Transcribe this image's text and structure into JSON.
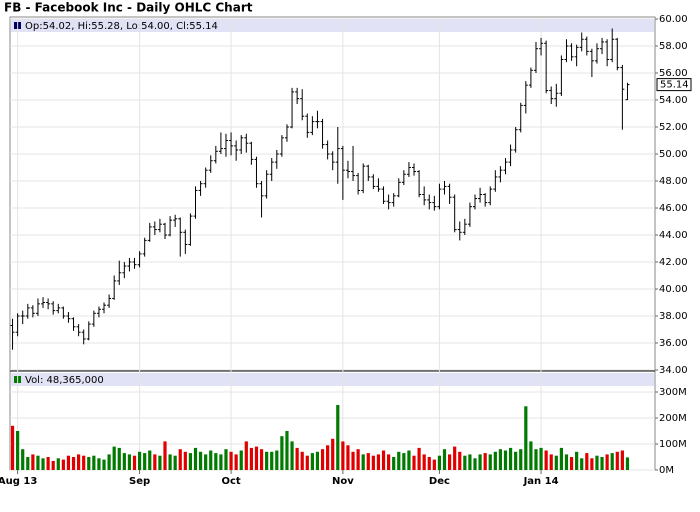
{
  "chart_data": {
    "type": "ohlc",
    "title": "FB - Facebook Inc - Daily OHLC Chart",
    "legend_label": "Op:54.02, Hi:55.28, Lo:54.00, Cl:55.14",
    "volume_label": "Vol: 48,365,000",
    "categories": [
      null,
      "Aug 13",
      null,
      null,
      null,
      null,
      null,
      null,
      null,
      null,
      null,
      null,
      null,
      null,
      null,
      null,
      null,
      null,
      null,
      null,
      null,
      null,
      null,
      null,
      null,
      "Sep",
      null,
      null,
      null,
      null,
      null,
      null,
      null,
      null,
      null,
      null,
      null,
      null,
      null,
      null,
      null,
      null,
      null,
      "Oct",
      null,
      null,
      null,
      null,
      null,
      null,
      null,
      null,
      null,
      null,
      null,
      null,
      null,
      null,
      null,
      null,
      null,
      null,
      null,
      null,
      null,
      "Nov",
      null,
      null,
      null,
      null,
      null,
      null,
      null,
      null,
      null,
      null,
      null,
      null,
      null,
      null,
      null,
      null,
      null,
      null,
      "Dec",
      null,
      null,
      null,
      null,
      null,
      null,
      null,
      null,
      null,
      null,
      null,
      null,
      null,
      null,
      null,
      null,
      null,
      null,
      null,
      "Jan 14",
      null,
      null,
      null,
      null,
      null,
      null,
      null,
      null,
      null,
      null,
      null,
      null,
      null,
      null,
      null,
      null,
      null
    ],
    "open": [
      37.3,
      36.8,
      38.0,
      38.0,
      38.6,
      38.2,
      38.9,
      39.0,
      38.9,
      38.4,
      38.6,
      38.0,
      37.8,
      37.2,
      36.8,
      36.3,
      37.4,
      38.2,
      38.5,
      38.8,
      39.3,
      40.6,
      41.2,
      41.7,
      42.0,
      41.8,
      42.6,
      43.6,
      44.6,
      44.4,
      44.8,
      44.0,
      45.1,
      45.2,
      44.2,
      43.3,
      45.4,
      47.3,
      47.8,
      48.8,
      49.5,
      50.2,
      50.4,
      51.0,
      50.6,
      50.3,
      51.2,
      50.8,
      49.6,
      47.8,
      46.9,
      48.5,
      49.4,
      50.0,
      51.2,
      52.0,
      54.6,
      54.1,
      52.8,
      51.6,
      52.4,
      52.4,
      50.7,
      50.0,
      49.4,
      50.4,
      48.8,
      48.7,
      48.4,
      47.3,
      49.1,
      48.3,
      47.6,
      47.4,
      46.5,
      46.4,
      46.9,
      47.9,
      48.5,
      49.0,
      48.7,
      47.0,
      46.6,
      46.4,
      46.1,
      47.4,
      47.6,
      46.8,
      44.4,
      44.2,
      44.8,
      46.1,
      46.7,
      47.0,
      46.4,
      47.4,
      48.3,
      48.8,
      49.4,
      50.3,
      51.8,
      53.6,
      55.1,
      56.2,
      57.8,
      58.2,
      54.7,
      54.1,
      54.5,
      57.0,
      58.0,
      57.2,
      57.9,
      58.5,
      57.6,
      56.9,
      57.8,
      58.3,
      57.0,
      58.5,
      56.4,
      54.02
    ],
    "high": [
      37.8,
      38.2,
      38.4,
      38.9,
      38.8,
      39.3,
      39.4,
      39.3,
      39.1,
      38.9,
      38.7,
      38.3,
      37.9,
      37.4,
      37.0,
      37.6,
      38.4,
      38.7,
      39.0,
      39.6,
      41.0,
      42.1,
      42.0,
      42.3,
      42.3,
      42.8,
      43.8,
      44.9,
      45.0,
      45.2,
      44.9,
      45.4,
      45.5,
      45.3,
      44.4,
      45.6,
      47.6,
      48.0,
      49.0,
      49.9,
      50.6,
      51.6,
      51.5,
      51.6,
      51.0,
      51.4,
      51.5,
      50.9,
      49.8,
      48.0,
      48.8,
      49.7,
      50.3,
      51.4,
      52.2,
      54.9,
      54.9,
      54.8,
      53.0,
      52.8,
      53.2,
      52.6,
      51.0,
      50.2,
      52.0,
      50.6,
      49.5,
      50.6,
      48.6,
      49.3,
      49.2,
      48.5,
      48.2,
      47.6,
      47.0,
      47.1,
      48.2,
      48.8,
      49.4,
      49.3,
      48.8,
      47.6,
      47.0,
      46.9,
      47.8,
      48.0,
      47.8,
      47.0,
      45.0,
      45.2,
      46.4,
      47.0,
      47.5,
      47.1,
      47.6,
      48.8,
      49.1,
      49.7,
      50.7,
      52.0,
      53.8,
      55.4,
      56.4,
      58.3,
      58.6,
      58.4,
      55.0,
      55.2,
      57.3,
      58.5,
      58.2,
      58.1,
      59.0,
      58.7,
      57.8,
      58.2,
      58.6,
      58.5,
      59.3,
      58.6,
      56.6,
      55.28
    ],
    "low": [
      35.5,
      36.5,
      37.4,
      37.8,
      37.9,
      38.0,
      38.6,
      38.5,
      38.1,
      38.2,
      37.8,
      37.5,
      36.9,
      36.5,
      35.9,
      36.2,
      37.2,
      37.9,
      38.2,
      38.6,
      39.2,
      40.3,
      40.8,
      41.3,
      41.5,
      41.6,
      42.4,
      43.5,
      44.0,
      44.2,
      43.7,
      43.9,
      44.6,
      42.4,
      42.6,
      43.2,
      45.2,
      46.9,
      47.5,
      48.6,
      49.3,
      50.0,
      49.8,
      49.9,
      49.5,
      50.0,
      50.1,
      49.2,
      47.5,
      45.3,
      46.7,
      48.0,
      48.9,
      49.8,
      50.9,
      51.9,
      53.7,
      52.5,
      51.2,
      51.4,
      51.9,
      50.4,
      49.6,
      48.8,
      47.8,
      46.6,
      48.2,
      48.0,
      47.0,
      47.1,
      48.0,
      47.4,
      47.2,
      46.3,
      45.9,
      46.1,
      46.8,
      47.7,
      48.3,
      48.4,
      46.8,
      46.2,
      45.9,
      45.8,
      45.9,
      47.0,
      46.3,
      44.2,
      43.6,
      44.0,
      44.6,
      45.9,
      46.4,
      46.1,
      46.2,
      47.2,
      47.9,
      48.5,
      49.1,
      50.1,
      51.6,
      53.0,
      54.9,
      56.0,
      57.3,
      54.5,
      53.7,
      53.5,
      54.3,
      56.8,
      56.9,
      56.5,
      57.6,
      57.3,
      55.7,
      56.7,
      57.4,
      56.5,
      56.8,
      56.2,
      51.8,
      54.0
    ],
    "close": [
      36.8,
      38.0,
      38.0,
      38.6,
      38.2,
      38.9,
      39.0,
      38.9,
      38.4,
      38.6,
      38.0,
      37.8,
      37.2,
      36.8,
      36.3,
      37.4,
      38.2,
      38.5,
      38.8,
      39.3,
      40.6,
      41.2,
      41.7,
      42.0,
      41.8,
      42.6,
      43.6,
      44.6,
      44.4,
      44.8,
      44.0,
      45.1,
      45.2,
      44.2,
      43.3,
      45.4,
      47.3,
      47.8,
      48.8,
      49.5,
      50.2,
      50.4,
      51.0,
      50.6,
      50.3,
      51.2,
      50.8,
      49.6,
      47.8,
      46.9,
      48.5,
      49.4,
      50.0,
      51.2,
      52.0,
      54.6,
      54.1,
      52.8,
      51.6,
      52.4,
      52.4,
      50.7,
      50.0,
      49.4,
      50.4,
      48.8,
      48.7,
      48.4,
      47.3,
      49.1,
      48.3,
      47.6,
      47.4,
      46.5,
      46.4,
      46.9,
      47.9,
      48.5,
      49.0,
      48.7,
      47.0,
      46.6,
      46.4,
      46.1,
      47.4,
      47.6,
      46.8,
      44.4,
      44.2,
      44.8,
      46.1,
      46.7,
      47.0,
      46.4,
      47.4,
      48.3,
      48.8,
      49.4,
      50.3,
      51.8,
      53.6,
      55.1,
      56.2,
      57.8,
      58.2,
      54.7,
      54.1,
      54.5,
      57.0,
      58.0,
      57.2,
      57.9,
      58.5,
      57.6,
      56.9,
      57.8,
      58.3,
      57.0,
      58.5,
      56.4,
      54.8,
      55.14
    ],
    "volume": [
      170,
      150,
      80,
      50,
      60,
      55,
      45,
      50,
      35,
      45,
      40,
      55,
      50,
      60,
      55,
      50,
      55,
      45,
      40,
      60,
      90,
      85,
      65,
      60,
      55,
      70,
      65,
      75,
      60,
      55,
      110,
      60,
      55,
      80,
      70,
      65,
      85,
      70,
      60,
      75,
      65,
      60,
      80,
      70,
      60,
      75,
      110,
      85,
      90,
      80,
      70,
      70,
      75,
      130,
      150,
      110,
      85,
      70,
      55,
      65,
      70,
      80,
      95,
      120,
      250,
      110,
      95,
      70,
      80,
      60,
      65,
      55,
      60,
      75,
      60,
      50,
      70,
      65,
      75,
      55,
      85,
      60,
      50,
      40,
      55,
      80,
      60,
      90,
      70,
      55,
      60,
      45,
      60,
      65,
      60,
      70,
      80,
      75,
      85,
      70,
      80,
      245,
      110,
      80,
      85,
      75,
      60,
      55,
      85,
      60,
      50,
      70,
      45,
      65,
      45,
      55,
      50,
      60,
      65,
      70,
      75,
      48.365
    ],
    "ylim": [
      34,
      60
    ],
    "yticks": [
      {
        "value": 34,
        "label": "34.00"
      },
      {
        "value": 36,
        "label": "36.00"
      },
      {
        "value": 38,
        "label": "38.00"
      },
      {
        "value": 40,
        "label": "40.00"
      },
      {
        "value": 42,
        "label": "42.00"
      },
      {
        "value": 44,
        "label": "44.00"
      },
      {
        "value": 46,
        "label": "46.00"
      },
      {
        "value": 48,
        "label": "48.00"
      },
      {
        "value": 50,
        "label": "50.00"
      },
      {
        "value": 52,
        "label": "52.00"
      },
      {
        "value": 54,
        "label": "54.00"
      },
      {
        "value": 56,
        "label": "56.00"
      },
      {
        "value": 58,
        "label": "58.00"
      },
      {
        "value": 60,
        "label": "60.00"
      }
    ],
    "y2lim": [
      0,
      300
    ],
    "y2ticks": [
      {
        "value": 0,
        "label": "0M"
      },
      {
        "value": 100,
        "label": "100M"
      },
      {
        "value": 200,
        "label": "200M"
      },
      {
        "value": 300,
        "label": "300M"
      }
    ],
    "grid": true,
    "price_color": "#000000",
    "up_color": "#007a00",
    "down_color": "#e00000"
  }
}
